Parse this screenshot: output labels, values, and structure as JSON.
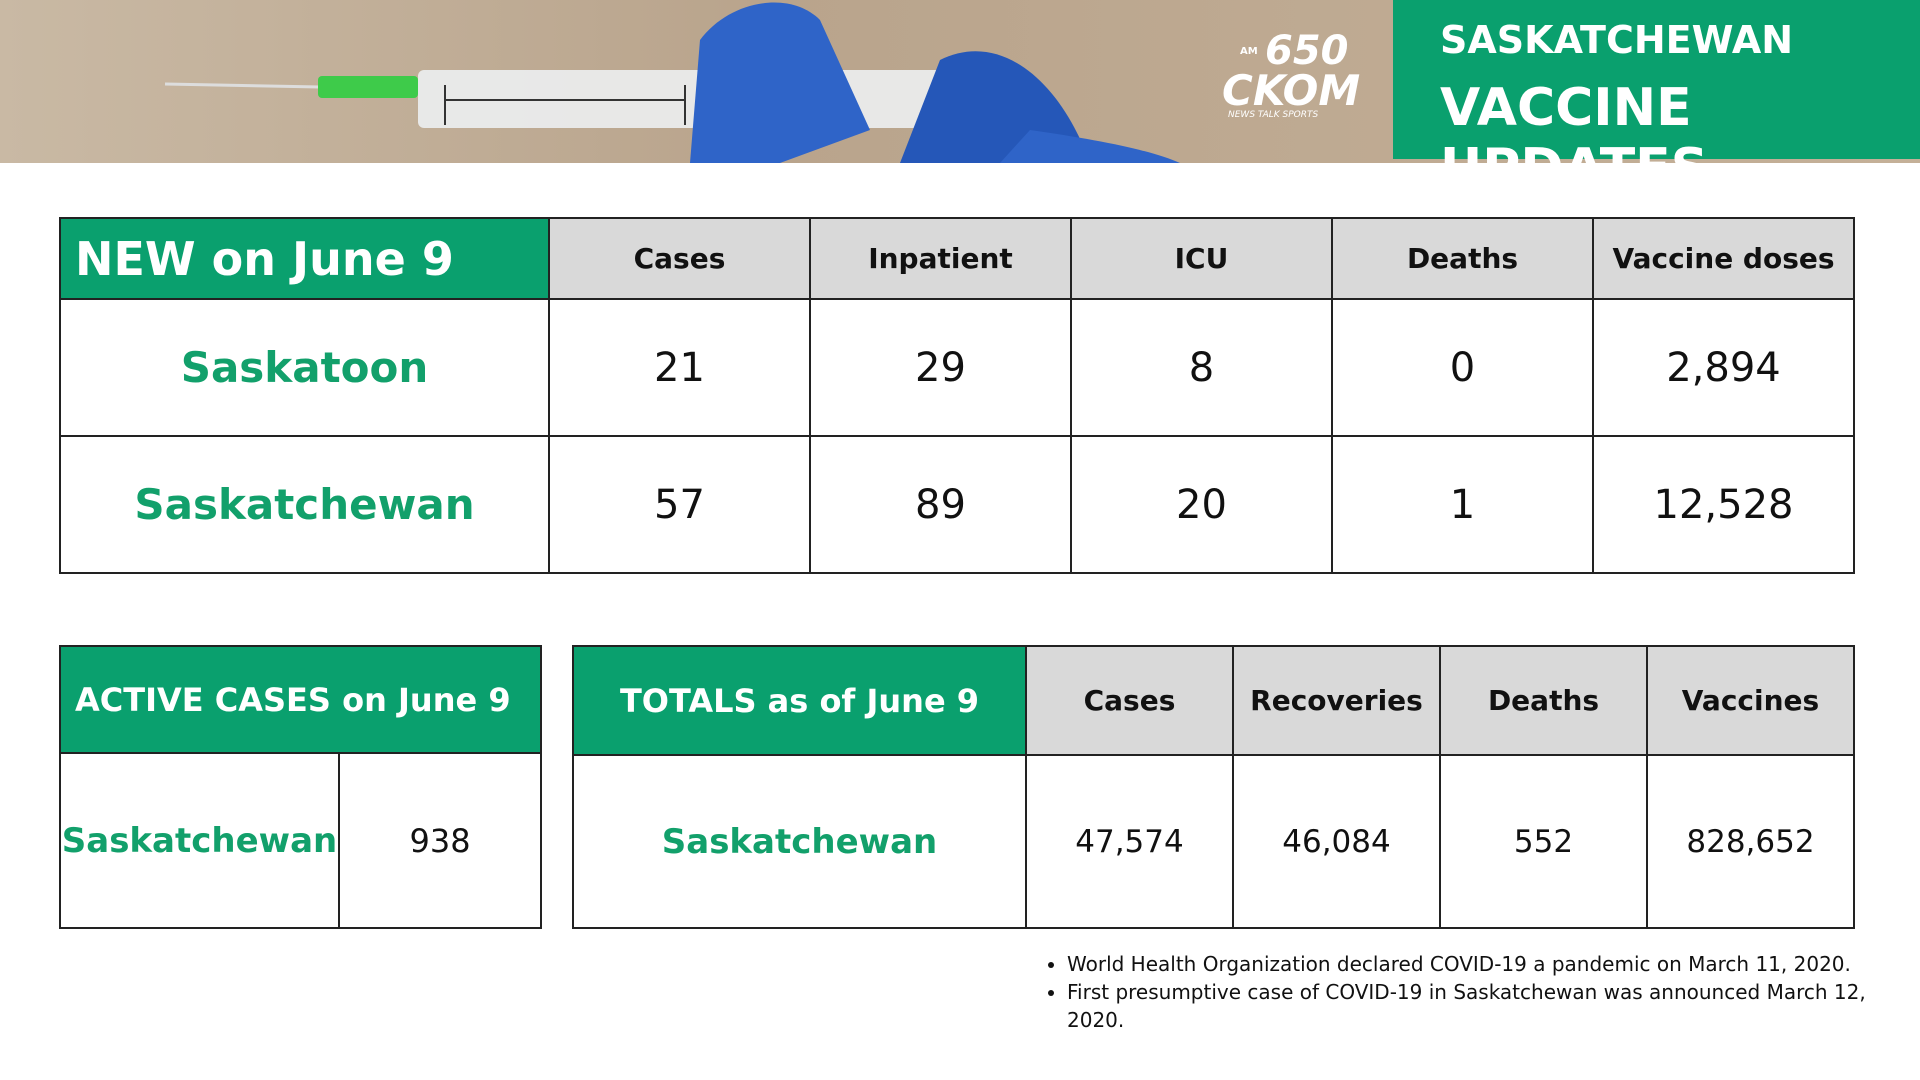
{
  "header": {
    "logo": {
      "am": "AM",
      "number": "650",
      "name": "CKOM",
      "tagline": "NEWS TALK SPORTS"
    },
    "title_line1": "SASKATCHEWAN",
    "title_line2": "VACCINE UPDATES"
  },
  "new_table": {
    "title": "NEW on June 9",
    "columns": [
      "Cases",
      "Inpatient",
      "ICU",
      "Deaths",
      "Vaccine doses"
    ],
    "rows": [
      {
        "label": "Saskatoon",
        "values": [
          "21",
          "29",
          "8",
          "0",
          "2,894"
        ]
      },
      {
        "label": "Saskatchewan",
        "values": [
          "57",
          "89",
          "20",
          "1",
          "12,528"
        ]
      }
    ]
  },
  "active_table": {
    "title": "ACTIVE CASES on June 9",
    "rows": [
      {
        "label": "Saskatchewan",
        "value": "938"
      }
    ]
  },
  "totals_table": {
    "title": "TOTALS as of June 9",
    "columns": [
      "Cases",
      "Recoveries",
      "Deaths",
      "Vaccines"
    ],
    "rows": [
      {
        "label": "Saskatchewan",
        "values": [
          "47,574",
          "46,084",
          "552",
          "828,652"
        ]
      }
    ]
  },
  "notes": [
    "World Health Organization declared COVID-19 a pandemic on March 11, 2020.",
    "First presumptive case of COVID-19 in Saskatchewan was announced March 12, 2020."
  ]
}
